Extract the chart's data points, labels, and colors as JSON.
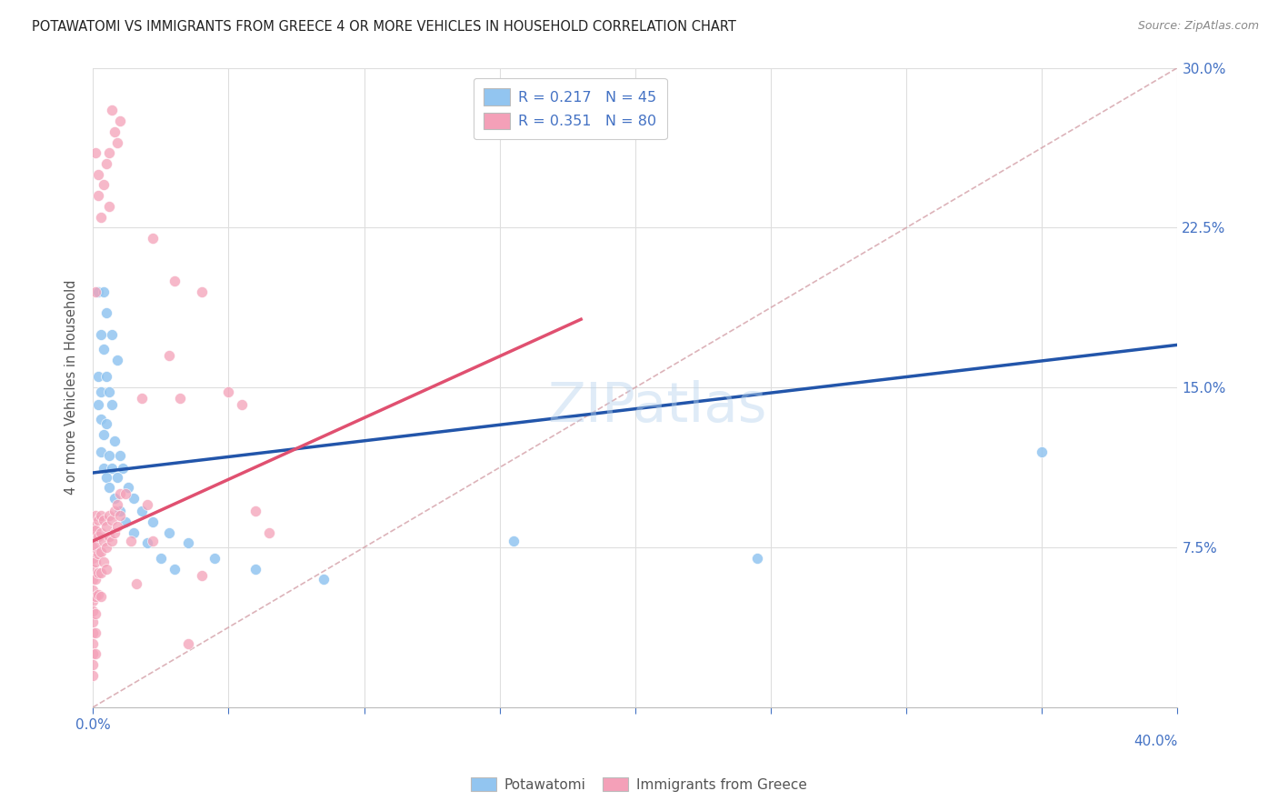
{
  "title": "POTAWATOMI VS IMMIGRANTS FROM GREECE 4 OR MORE VEHICLES IN HOUSEHOLD CORRELATION CHART",
  "source": "Source: ZipAtlas.com",
  "ylabel": "4 or more Vehicles in Household",
  "xmin": 0.0,
  "xmax": 0.4,
  "ymin": 0.0,
  "ymax": 0.3,
  "color_blue": "#92C5F0",
  "color_pink": "#F4A0B8",
  "color_blue_line": "#2255AA",
  "color_pink_line": "#E05070",
  "color_diag": "#D4A0A8",
  "legend_label1": "R = 0.217   N = 45",
  "legend_label2": "R = 0.351   N = 80",
  "legend_series1": "Potawatomi",
  "legend_series2": "Immigrants from Greece",
  "blue_line_x0": 0.0,
  "blue_line_y0": 0.11,
  "blue_line_x1": 0.4,
  "blue_line_y1": 0.17,
  "pink_line_x0": 0.0,
  "pink_line_y0": 0.078,
  "pink_line_x1": 0.18,
  "pink_line_y1": 0.182,
  "blue_points": [
    [
      0.002,
      0.195
    ],
    [
      0.004,
      0.195
    ],
    [
      0.005,
      0.185
    ],
    [
      0.003,
      0.175
    ],
    [
      0.007,
      0.175
    ],
    [
      0.004,
      0.168
    ],
    [
      0.009,
      0.163
    ],
    [
      0.002,
      0.155
    ],
    [
      0.005,
      0.155
    ],
    [
      0.003,
      0.148
    ],
    [
      0.006,
      0.148
    ],
    [
      0.002,
      0.142
    ],
    [
      0.007,
      0.142
    ],
    [
      0.003,
      0.135
    ],
    [
      0.005,
      0.133
    ],
    [
      0.004,
      0.128
    ],
    [
      0.008,
      0.125
    ],
    [
      0.003,
      0.12
    ],
    [
      0.006,
      0.118
    ],
    [
      0.01,
      0.118
    ],
    [
      0.004,
      0.112
    ],
    [
      0.007,
      0.112
    ],
    [
      0.011,
      0.112
    ],
    [
      0.005,
      0.108
    ],
    [
      0.009,
      0.108
    ],
    [
      0.006,
      0.103
    ],
    [
      0.013,
      0.103
    ],
    [
      0.008,
      0.098
    ],
    [
      0.015,
      0.098
    ],
    [
      0.01,
      0.092
    ],
    [
      0.018,
      0.092
    ],
    [
      0.012,
      0.087
    ],
    [
      0.022,
      0.087
    ],
    [
      0.015,
      0.082
    ],
    [
      0.028,
      0.082
    ],
    [
      0.02,
      0.077
    ],
    [
      0.035,
      0.077
    ],
    [
      0.025,
      0.07
    ],
    [
      0.045,
      0.07
    ],
    [
      0.03,
      0.065
    ],
    [
      0.06,
      0.065
    ],
    [
      0.085,
      0.06
    ],
    [
      0.155,
      0.078
    ],
    [
      0.245,
      0.07
    ],
    [
      0.35,
      0.12
    ]
  ],
  "pink_points": [
    [
      0.0,
      0.085
    ],
    [
      0.0,
      0.08
    ],
    [
      0.0,
      0.075
    ],
    [
      0.0,
      0.07
    ],
    [
      0.0,
      0.065
    ],
    [
      0.0,
      0.06
    ],
    [
      0.0,
      0.055
    ],
    [
      0.0,
      0.05
    ],
    [
      0.0,
      0.045
    ],
    [
      0.0,
      0.04
    ],
    [
      0.0,
      0.035
    ],
    [
      0.0,
      0.03
    ],
    [
      0.0,
      0.025
    ],
    [
      0.0,
      0.02
    ],
    [
      0.0,
      0.015
    ],
    [
      0.001,
      0.09
    ],
    [
      0.001,
      0.083
    ],
    [
      0.001,
      0.076
    ],
    [
      0.001,
      0.068
    ],
    [
      0.001,
      0.06
    ],
    [
      0.001,
      0.052
    ],
    [
      0.001,
      0.044
    ],
    [
      0.001,
      0.035
    ],
    [
      0.001,
      0.025
    ],
    [
      0.002,
      0.088
    ],
    [
      0.002,
      0.08
    ],
    [
      0.002,
      0.072
    ],
    [
      0.002,
      0.063
    ],
    [
      0.002,
      0.053
    ],
    [
      0.003,
      0.09
    ],
    [
      0.003,
      0.082
    ],
    [
      0.003,
      0.073
    ],
    [
      0.003,
      0.063
    ],
    [
      0.003,
      0.052
    ],
    [
      0.004,
      0.088
    ],
    [
      0.004,
      0.078
    ],
    [
      0.004,
      0.068
    ],
    [
      0.005,
      0.085
    ],
    [
      0.005,
      0.075
    ],
    [
      0.005,
      0.065
    ],
    [
      0.006,
      0.09
    ],
    [
      0.006,
      0.08
    ],
    [
      0.007,
      0.088
    ],
    [
      0.007,
      0.078
    ],
    [
      0.008,
      0.092
    ],
    [
      0.008,
      0.082
    ],
    [
      0.009,
      0.095
    ],
    [
      0.009,
      0.085
    ],
    [
      0.01,
      0.1
    ],
    [
      0.01,
      0.09
    ],
    [
      0.012,
      0.1
    ],
    [
      0.014,
      0.078
    ],
    [
      0.016,
      0.058
    ],
    [
      0.018,
      0.145
    ],
    [
      0.02,
      0.095
    ],
    [
      0.022,
      0.078
    ],
    [
      0.028,
      0.165
    ],
    [
      0.032,
      0.145
    ],
    [
      0.035,
      0.03
    ],
    [
      0.04,
      0.062
    ],
    [
      0.002,
      0.25
    ],
    [
      0.002,
      0.24
    ],
    [
      0.003,
      0.23
    ],
    [
      0.004,
      0.245
    ],
    [
      0.005,
      0.255
    ],
    [
      0.006,
      0.26
    ],
    [
      0.006,
      0.235
    ],
    [
      0.007,
      0.28
    ],
    [
      0.008,
      0.27
    ],
    [
      0.009,
      0.265
    ],
    [
      0.01,
      0.275
    ],
    [
      0.001,
      0.26
    ],
    [
      0.001,
      0.195
    ],
    [
      0.022,
      0.22
    ],
    [
      0.03,
      0.2
    ],
    [
      0.04,
      0.195
    ],
    [
      0.05,
      0.148
    ],
    [
      0.055,
      0.142
    ],
    [
      0.06,
      0.092
    ],
    [
      0.065,
      0.082
    ]
  ]
}
